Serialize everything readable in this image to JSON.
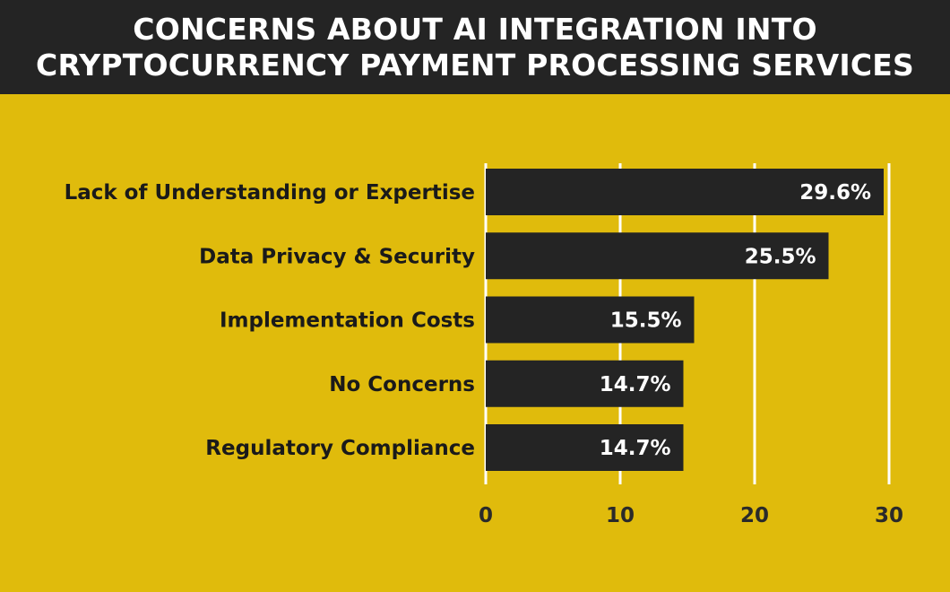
{
  "chart_data": {
    "type": "bar",
    "orientation": "horizontal",
    "title": "CONCERNS ABOUT AI INTEGRATION INTO CRYPTOCURRENCY PAYMENT PROCESSING SERVICES",
    "title_lines": [
      "CONCERNS ABOUT AI INTEGRATION INTO",
      "CRYPTOCURRENCY PAYMENT PROCESSING SERVICES"
    ],
    "categories": [
      "Lack of Understanding or Expertise",
      "Data Privacy & Security",
      "Implementation Costs",
      "No Concerns",
      "Regulatory Compliance"
    ],
    "values": [
      29.6,
      25.5,
      15.5,
      14.7,
      14.7
    ],
    "value_labels": [
      "29.6%",
      "25.5%",
      "15.5%",
      "14.7%",
      "14.7%"
    ],
    "xticks": [
      0,
      10,
      20,
      30
    ],
    "xtick_labels": [
      "0",
      "10",
      "20",
      "30"
    ],
    "xlim": [
      0,
      30
    ],
    "xlabel": "",
    "ylabel": "",
    "grid": true,
    "colors": {
      "background": "#E0BB0C",
      "bar": "#242424",
      "title_bar": "#242424",
      "grid": "#FFFFFF"
    }
  }
}
